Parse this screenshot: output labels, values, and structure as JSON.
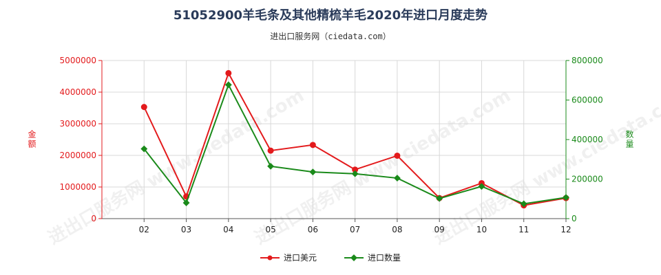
{
  "title": "51052900羊毛条及其他精梳羊毛2020年进口月度走势",
  "subtitle": "进出口服务网（ciedata.com）",
  "watermark": "进出口服务网 www.ciedata.com",
  "colors": {
    "usd": "#e31a1c",
    "qty": "#1a8a1a",
    "grid": "#d8d8d8",
    "axis": "#555555"
  },
  "chart_data": {
    "type": "line",
    "categories": [
      "02",
      "03",
      "04",
      "05",
      "06",
      "07",
      "08",
      "09",
      "10",
      "11",
      "12"
    ],
    "y_left": {
      "label": "金额",
      "ylim": [
        0,
        5000000
      ],
      "ticks": [
        "0",
        "1000000",
        "2000000",
        "3000000",
        "4000000",
        "5000000"
      ]
    },
    "y_right": {
      "label": "数量",
      "ylim": [
        0,
        800000
      ],
      "ticks": [
        "0",
        "200000",
        "400000",
        "600000",
        "800000"
      ]
    },
    "grid": true,
    "legend": "bottom-center",
    "series": [
      {
        "name": "进口美元",
        "axis": "left",
        "color": "#e31a1c",
        "values": [
          3530000,
          700000,
          4600000,
          2150000,
          2330000,
          1550000,
          1990000,
          650000,
          1120000,
          420000,
          650000
        ]
      },
      {
        "name": "进口数量",
        "axis": "right",
        "color": "#1a8a1a",
        "values": [
          353000,
          80000,
          677000,
          265000,
          236000,
          227000,
          205000,
          102000,
          163000,
          75000,
          107000
        ]
      }
    ]
  }
}
